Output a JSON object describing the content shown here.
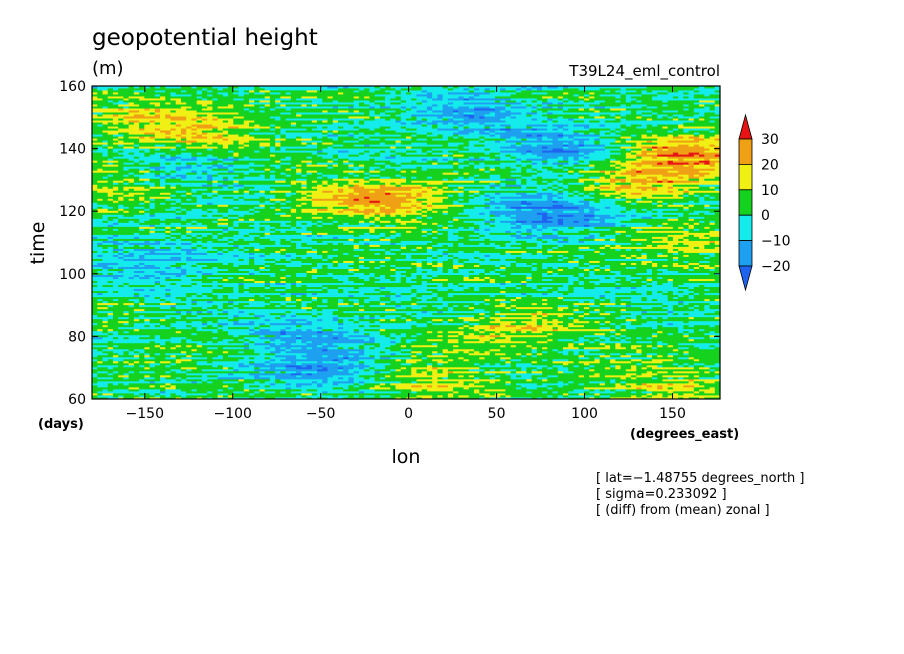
{
  "chart_data": {
    "type": "heatmap",
    "title": "geopotential height",
    "units": "(m)",
    "run_label": "T39L24_eml_control",
    "xlabel": "lon",
    "ylabel": "time",
    "x_unit_label": "(degrees_east)",
    "y_unit_label": "(days)",
    "xlim": [
      -180,
      177
    ],
    "ylim": [
      60,
      160
    ],
    "x_ticks": [
      -150,
      -100,
      -50,
      0,
      50,
      100,
      150
    ],
    "x_tick_labels": [
      "−150",
      "−100",
      "−50",
      "0",
      "50",
      "100",
      "150"
    ],
    "y_ticks": [
      60,
      80,
      100,
      120,
      140,
      160
    ],
    "y_tick_labels": [
      "60",
      "80",
      "100",
      "120",
      "140",
      "160"
    ],
    "colorbar": {
      "levels": [
        -20,
        -10,
        0,
        10,
        20,
        30
      ],
      "level_labels": [
        "−20",
        "−10",
        "0",
        "10",
        "20",
        "30"
      ],
      "colors": [
        "#1e64f0",
        "#1ea0f0",
        "#14ebeb",
        "#14d21e",
        "#f0f014",
        "#f0a014",
        "#e61414"
      ],
      "extend": "both"
    },
    "annotations": [
      "[ lat=−1.48755 degrees_north ]",
      "[ sigma=0.233092 ]",
      "[ (diff) from (mean) zonal ]"
    ],
    "features": [
      {
        "lon": 80,
        "time": 120,
        "value": -22
      },
      {
        "lon": 85,
        "time": 140,
        "value": -18
      },
      {
        "lon": 35,
        "time": 152,
        "value": -16
      },
      {
        "lon": -45,
        "time": 70,
        "value": -20
      },
      {
        "lon": -60,
        "time": 82,
        "value": -12
      },
      {
        "lon": -150,
        "time": 104,
        "value": -14
      },
      {
        "lon": -125,
        "time": 133,
        "value": -10
      },
      {
        "lon": 155,
        "time": 138,
        "value": 24
      },
      {
        "lon": 130,
        "time": 130,
        "value": 16
      },
      {
        "lon": -30,
        "time": 125,
        "value": 14
      },
      {
        "lon": -5,
        "time": 122,
        "value": 12
      },
      {
        "lon": -150,
        "time": 150,
        "value": 10
      },
      {
        "lon": -120,
        "time": 146,
        "value": 14
      },
      {
        "lon": 10,
        "time": 66,
        "value": 12
      },
      {
        "lon": 60,
        "time": 82,
        "value": 14
      },
      {
        "lon": 150,
        "time": 64,
        "value": 10
      },
      {
        "lon": -170,
        "time": 130,
        "value": 10
      },
      {
        "lon": 160,
        "time": 110,
        "value": 12
      }
    ],
    "grid": false
  }
}
